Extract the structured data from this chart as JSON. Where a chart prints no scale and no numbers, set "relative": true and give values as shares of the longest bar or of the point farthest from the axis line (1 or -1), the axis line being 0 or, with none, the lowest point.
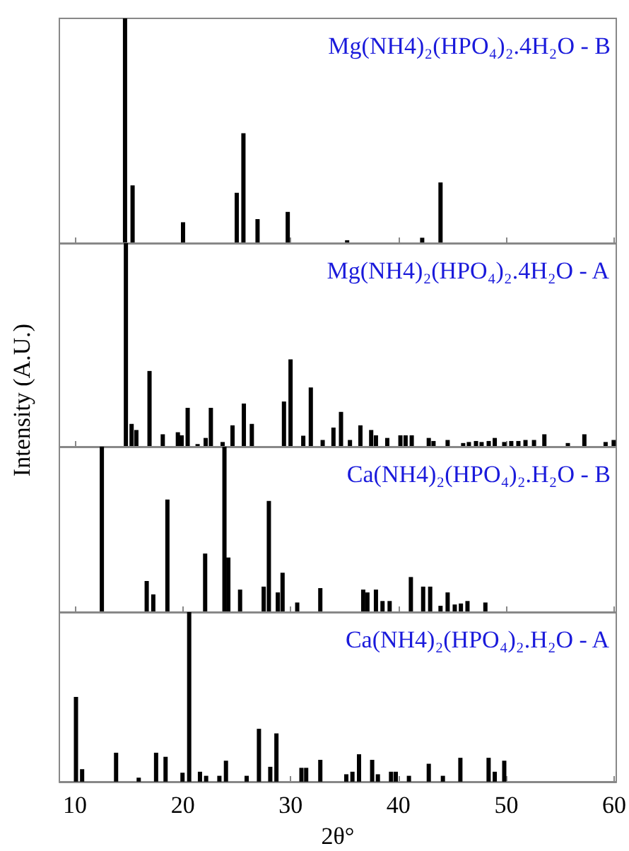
{
  "chart_data": [
    {
      "type": "bar",
      "title": "Mg(NH4)₂(HPO₄)₂.4H₂O - B",
      "relative": true,
      "color": "#000000",
      "xlim": [
        8.55,
        60.2
      ],
      "xticks": [
        10,
        20,
        30,
        40,
        50,
        60
      ],
      "tick_labels": false,
      "x": [
        14.64,
        15.34,
        20.02,
        25.0,
        25.62,
        26.93,
        29.73,
        35.24,
        42.2,
        43.9
      ],
      "values": [
        1.0,
        0.257,
        0.093,
        0.224,
        0.489,
        0.107,
        0.139,
        0.013,
        0.024,
        0.27
      ]
    },
    {
      "type": "bar",
      "title": "Mg(NH4)₂(HPO₄)₂.4H₂O - A",
      "ylabel": "Intensity (A.U.)",
      "relative": true,
      "color": "#000000",
      "xlim": [
        8.55,
        60.2
      ],
      "xticks": [
        10,
        20,
        30,
        40,
        50,
        60
      ],
      "tick_labels": false,
      "x": [
        14.72,
        15.25,
        15.69,
        16.91,
        18.14,
        19.54,
        19.89,
        20.45,
        21.37,
        22.12,
        22.6,
        23.69,
        24.61,
        25.66,
        26.4,
        29.38,
        29.99,
        31.17,
        31.87,
        32.97,
        33.97,
        34.67,
        35.5,
        36.47,
        37.47,
        37.91,
        38.96,
        40.18,
        40.66,
        41.23,
        42.81,
        43.25,
        44.56,
        46.0,
        46.53,
        47.19,
        47.71,
        48.37,
        48.93,
        49.81,
        50.46,
        51.12,
        51.78,
        52.57,
        53.53,
        55.71,
        57.24,
        59.21,
        59.96
      ],
      "values": [
        1.0,
        0.112,
        0.082,
        0.372,
        0.061,
        0.071,
        0.056,
        0.191,
        0.013,
        0.043,
        0.191,
        0.023,
        0.105,
        0.212,
        0.112,
        0.222,
        0.429,
        0.054,
        0.291,
        0.033,
        0.094,
        0.171,
        0.033,
        0.105,
        0.082,
        0.056,
        0.043,
        0.056,
        0.056,
        0.056,
        0.043,
        0.028,
        0.033,
        0.018,
        0.023,
        0.028,
        0.023,
        0.028,
        0.043,
        0.023,
        0.028,
        0.028,
        0.033,
        0.033,
        0.061,
        0.018,
        0.061,
        0.023,
        0.033
      ]
    },
    {
      "type": "bar",
      "title": "Ca(NH4)₂(HPO₄)₂.H₂O - B",
      "relative": true,
      "color": "#000000",
      "xlim": [
        8.55,
        60.2
      ],
      "xticks": [
        10,
        20,
        30,
        40,
        50,
        60
      ],
      "tick_labels": false,
      "x": [
        12.49,
        16.65,
        17.26,
        18.57,
        22.07,
        23.86,
        24.22,
        25.31,
        27.5,
        27.85,
        27.98,
        28.81,
        29.25,
        30.61,
        32.75,
        36.73,
        37.12,
        37.91,
        38.52,
        39.18,
        41.15,
        42.29,
        42.94,
        43.9,
        44.56,
        45.22,
        45.79,
        46.4,
        48.06
      ],
      "values": [
        1.0,
        0.188,
        0.107,
        0.681,
        0.354,
        1.0,
        0.33,
        0.136,
        0.154,
        null,
        0.672,
        0.119,
        0.238,
        0.058,
        0.145,
        0.136,
        0.119,
        0.136,
        0.067,
        0.067,
        0.212,
        0.154,
        0.154,
        0.038,
        0.119,
        0.046,
        0.052,
        0.067,
        0.058
      ]
    },
    {
      "type": "bar",
      "title": "Ca(NH4)₂(HPO₄)₂.H₂O - A",
      "xlabel": "2θ°",
      "relative": true,
      "color": "#000000",
      "xlim": [
        8.55,
        60.2
      ],
      "xticks": [
        10,
        20,
        30,
        40,
        50,
        60
      ],
      "tick_labels": "x",
      "x": [
        10.09,
        10.66,
        13.81,
        15.91,
        17.52,
        18.4,
        19.97,
        20.59,
        21.59,
        22.16,
        23.39,
        24.0,
        25.92,
        27.06,
        28.11,
        28.68,
        31.0,
        31.44,
        32.75,
        35.16,
        35.73,
        36.34,
        37.56,
        38.09,
        39.31,
        39.75,
        40.97,
        42.81,
        44.12,
        45.74,
        48.36,
        48.93,
        49.81
      ],
      "values": [
        0.5,
        0.074,
        0.171,
        0.024,
        0.171,
        0.147,
        0.053,
        1.0,
        0.059,
        0.035,
        0.035,
        0.124,
        0.035,
        0.312,
        0.088,
        0.285,
        0.082,
        0.082,
        0.129,
        0.044,
        0.059,
        0.162,
        0.129,
        0.044,
        0.059,
        0.059,
        0.035,
        0.106,
        0.035,
        0.141,
        0.141,
        0.059,
        0.124
      ]
    }
  ]
}
